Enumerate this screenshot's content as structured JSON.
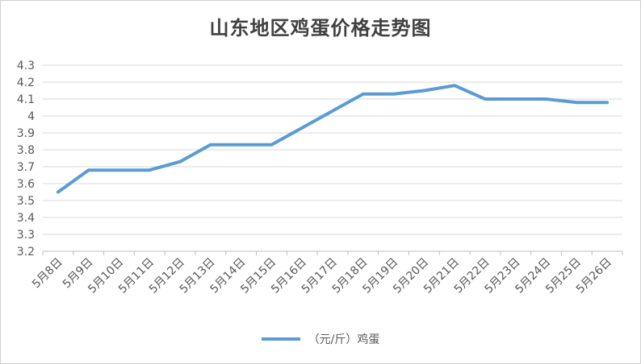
{
  "chart_data": {
    "type": "line",
    "title": "山东地区鸡蛋价格走势图",
    "categories": [
      "5月8日",
      "5月9日",
      "5月10日",
      "5月11日",
      "5月12日",
      "5月13日",
      "5月14日",
      "5月15日",
      "5月16日",
      "5月17日",
      "5月18日",
      "5月19日",
      "5月20日",
      "5月21日",
      "5月22日",
      "5月23日",
      "5月24日",
      "5月25日",
      "5月26日"
    ],
    "series": [
      {
        "name": "（元/斤）鸡蛋",
        "color": "#5b9bd5",
        "values": [
          3.55,
          3.68,
          3.68,
          3.68,
          3.73,
          3.83,
          3.83,
          3.83,
          3.93,
          4.03,
          4.13,
          4.13,
          4.15,
          4.18,
          4.1,
          4.1,
          4.1,
          4.08,
          4.08
        ]
      }
    ],
    "ylim": [
      3.2,
      4.3
    ],
    "yticks": [
      "3.2",
      "3.3",
      "3.4",
      "3.5",
      "3.6",
      "3.7",
      "3.8",
      "3.9",
      "4",
      "4.1",
      "4.2",
      "4.3"
    ],
    "grid": true,
    "legend_position": "bottom"
  }
}
